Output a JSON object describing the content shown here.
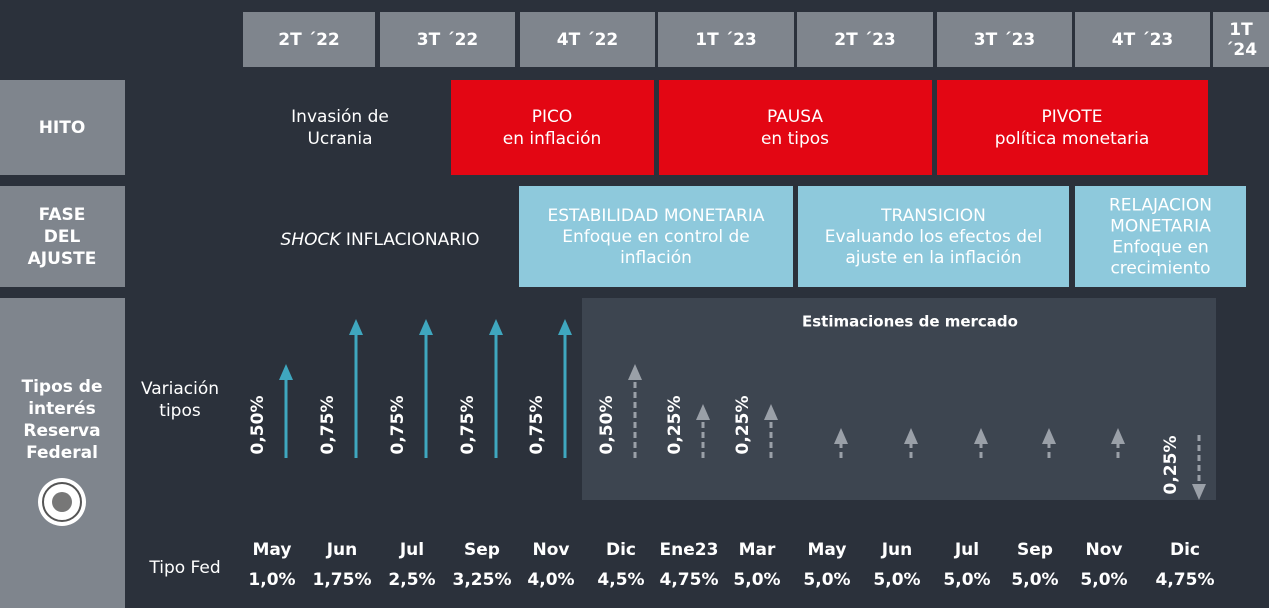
{
  "quarters": [
    "2T ´22",
    "3T ´22",
    "4T ´22",
    "1T ´23",
    "2T ´23",
    "3T ´23",
    "4T ´23",
    [
      "1T",
      "´24"
    ]
  ],
  "hito": {
    "label": "HITO",
    "items": [
      [
        "Invasión de",
        "Ucrania"
      ],
      [
        "PICO",
        "en inflación"
      ],
      [
        "PAUSA",
        "en tipos"
      ],
      [
        "PIVOTE",
        "política monetaria"
      ]
    ]
  },
  "fase": {
    "label": [
      "FASE",
      "DEL",
      "AJUSTE"
    ],
    "shock": {
      "italic": "SHOCK",
      "rest": " INFLACIONARIO"
    },
    "items": [
      [
        "ESTABILIDAD MONETARIA",
        "Enfoque en control de",
        "inflación"
      ],
      [
        "TRANSICION",
        "Evaluando los efectos del",
        "ajuste en la inflación"
      ],
      [
        "RELAJACION",
        "MONETARIA",
        "Enfoque en",
        "crecimiento"
      ]
    ]
  },
  "tipos": {
    "label": [
      "Tipos de",
      "interés",
      "Reserva",
      "Federal"
    ],
    "variacion": [
      "Variación",
      "tipos"
    ],
    "tipo_fed": "Tipo Fed",
    "estimaciones": "Estimaciones de mercado",
    "months": [
      {
        "month": "May",
        "rate": "1,0%",
        "change": "0,50%"
      },
      {
        "month": "Jun",
        "rate": "1,75%",
        "change": "0,75%"
      },
      {
        "month": "Jul",
        "rate": "2,5%",
        "change": "0,75%"
      },
      {
        "month": "Sep",
        "rate": "3,25%",
        "change": "0,75%"
      },
      {
        "month": "Nov",
        "rate": "4,0%",
        "change": "0,75%"
      },
      {
        "month": "Dic",
        "rate": "4,5%",
        "change": "0,50%"
      },
      {
        "month": "Ene23",
        "rate": "4,75%",
        "change": "0,25%"
      },
      {
        "month": "Mar",
        "rate": "5,0%",
        "change": "0,25%"
      },
      {
        "month": "May",
        "rate": "5,0%",
        "change": null
      },
      {
        "month": "Jun",
        "rate": "5,0%",
        "change": null
      },
      {
        "month": "Jul",
        "rate": "5,0%",
        "change": null
      },
      {
        "month": "Sep",
        "rate": "5,0%",
        "change": null
      },
      {
        "month": "Nov",
        "rate": "5,0%",
        "change": null
      },
      {
        "month": "Dic",
        "rate": "4,75%",
        "change": "0,25%"
      }
    ]
  }
}
